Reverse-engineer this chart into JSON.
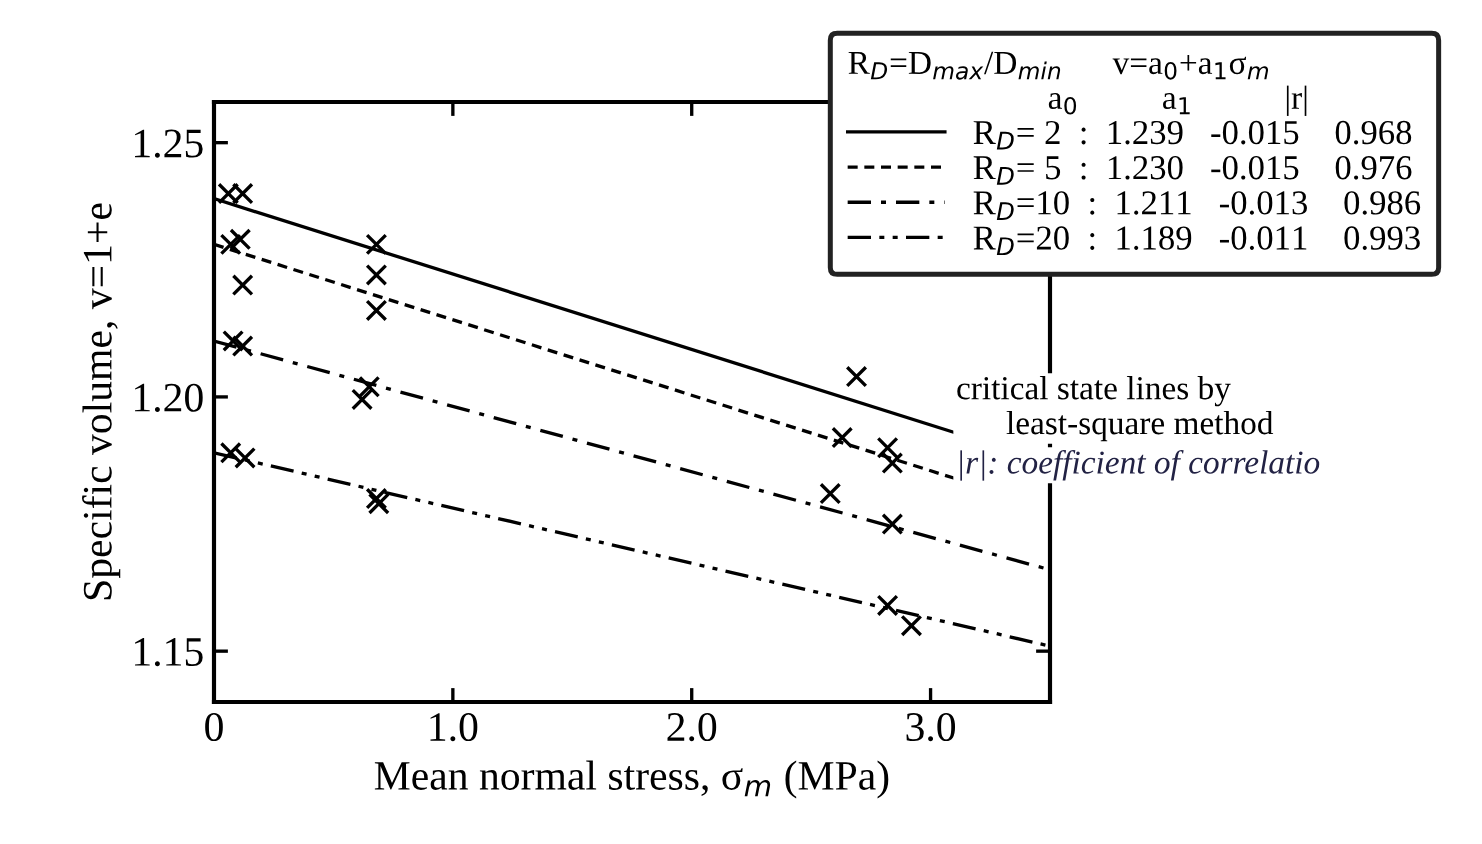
{
  "chart_data": {
    "type": "line",
    "xlabel": "Mean normal stress, σ$_{m}$ (MPa)",
    "ylabel": "Specific volume, v=1+e",
    "xlim": [
      0,
      3.5
    ],
    "ylim": [
      1.14,
      1.258
    ],
    "xticks": [
      0,
      {
        "value": 1.0,
        "label": "1.0"
      },
      {
        "value": 2.0,
        "label": "2.0"
      },
      {
        "value": 3.0,
        "label": "3.0"
      }
    ],
    "yticks": [
      1.15,
      {
        "value": 1.2,
        "label": "1.20"
      },
      1.25
    ],
    "grid": false,
    "legend": "top right",
    "legend_title": "R$_{D}$=D$_{max}$/D$_{min}$      v=a$_{0}$+a$_{1}$σ$_{m}$\n                        a$_{0}$          a$_{1}$           |r|",
    "series": [
      {
        "name": "R$_{D}$= 2  :  1.239   -0.015    0.968",
        "color": "#000000",
        "line_style": "solid",
        "marker": "none",
        "x": [
          0,
          3.1
        ],
        "values": [
          1.239,
          1.193
        ]
      },
      {
        "name": "R$_{D}$= 5  :  1.230   -0.015    0.976",
        "color": "#000000",
        "line_style": "dashed",
        "marker": "none",
        "x": [
          0,
          3.1
        ],
        "values": [
          1.23,
          1.184
        ]
      },
      {
        "name": "R$_{D}$=10  :  1.211   -0.013    0.986",
        "color": "#000000",
        "line_style": "dashdot",
        "marker": "none",
        "x": [
          0,
          3.5
        ],
        "values": [
          1.211,
          1.166
        ]
      },
      {
        "name": "R$_{D}$=20  :  1.189   -0.011    0.993",
        "color": "#000000",
        "line_style": "dashdotdot",
        "marker": "none",
        "x": [
          0,
          3.5
        ],
        "values": [
          1.189,
          1.151
        ]
      },
      {
        "type": "scatter",
        "color": "#000000",
        "marker": "cross",
        "x": [
          0.06,
          0.12,
          0.11,
          0.07,
          0.12,
          0.08,
          0.12,
          0.07,
          0.13,
          0.68,
          0.68,
          0.68,
          0.62,
          0.65,
          0.68,
          0.69,
          2.69,
          2.63,
          2.82,
          2.84,
          2.58,
          2.84,
          2.82,
          2.92
        ],
        "values": [
          1.24,
          1.24,
          1.231,
          1.23,
          1.222,
          1.211,
          1.21,
          1.189,
          1.188,
          1.23,
          1.224,
          1.217,
          1.1995,
          1.202,
          1.18,
          1.179,
          1.204,
          1.192,
          1.19,
          1.187,
          1.181,
          1.175,
          1.159,
          1.155
        ]
      }
    ],
    "annotations": [
      "critical state lines by\n      least-square method",
      "|r|: coefficient of correlatio"
    ]
  }
}
